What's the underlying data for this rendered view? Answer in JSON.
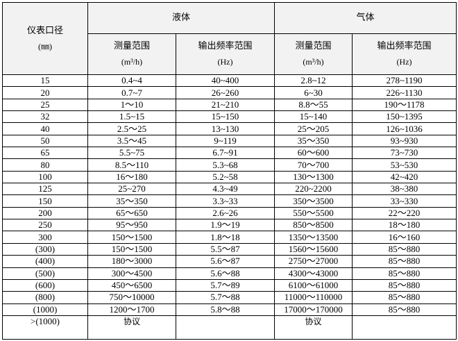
{
  "header": {
    "diameter": "仪表口径",
    "diameter_unit": "(㎜)",
    "liquid": "液体",
    "gas": "气体",
    "range": "测量范围",
    "range_unit": "(m³/h)",
    "freq": "输出频率范围",
    "freq_unit": "(Hz)"
  },
  "rows": [
    [
      "15",
      "0.4~4",
      "40~400",
      "2.8~12",
      "278~1190"
    ],
    [
      "20",
      "0.7~7",
      "26~260",
      "6~30",
      "226~1130"
    ],
    [
      "25",
      "1～10",
      "21~210",
      "8.8～55",
      "190～1178"
    ],
    [
      "32",
      "1.5~15",
      "15~150",
      "15~140",
      "150~1395"
    ],
    [
      "40",
      "2.5～25",
      "13~130",
      "25～205",
      "126~1036"
    ],
    [
      "50",
      "3.5～45",
      "9~119",
      "35～350",
      "93~930"
    ],
    [
      "65",
      "5.5~75",
      "6.7~91",
      "60～600",
      "73~730"
    ],
    [
      "80",
      "8.5～110",
      "5.3~68",
      "70～700",
      "53~530"
    ],
    [
      "100",
      "16～180",
      "5.2~58",
      "130～1300",
      "42~420"
    ],
    [
      "125",
      "25~270",
      "4.3~49",
      "220~2200",
      "38~380"
    ],
    [
      "150",
      "35～350",
      "3.3~33",
      "350～3500",
      "33~330"
    ],
    [
      "200",
      "65～650",
      "2.6~26",
      "550～5500",
      "22～220"
    ],
    [
      "250",
      "95～950",
      "1.9～19",
      "850～8500",
      "18～180"
    ],
    [
      "300",
      "150～1500",
      "1.8～18",
      "1350～13500",
      "16～160"
    ],
    [
      "(300)",
      "150～1500",
      "5.5～87",
      "1560～15600",
      "85～880"
    ],
    [
      "(400)",
      "180～3000",
      "5.6～87",
      "2750～27000",
      "85～880"
    ],
    [
      "(500)",
      "300～4500",
      "5.6～88",
      "4300～43000",
      "85～880"
    ],
    [
      "(600)",
      "450～6500",
      "5.7～89",
      "6100～61000",
      "85～880"
    ],
    [
      "(800)",
      "750～10000",
      "5.7～88",
      "11000～110000",
      "85～880"
    ],
    [
      "(1000)",
      "1200～1700",
      "5.8～88",
      "17000～170000",
      "85～880"
    ]
  ],
  "last_row": [
    ">(1000)",
    "协议",
    "",
    "协议",
    ""
  ]
}
